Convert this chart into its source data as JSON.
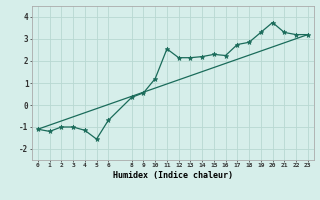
{
  "xlabel": "Humidex (Indice chaleur)",
  "background_color": "#d6eeea",
  "grid_color": "#b8d8d2",
  "line_color": "#1a6b5a",
  "x_ticks": [
    0,
    1,
    2,
    3,
    4,
    5,
    6,
    8,
    9,
    10,
    11,
    12,
    13,
    14,
    15,
    16,
    17,
    18,
    19,
    20,
    21,
    22,
    23
  ],
  "ylim": [
    -2.5,
    4.5
  ],
  "xlim": [
    -0.5,
    23.5
  ],
  "yticks": [
    -2,
    -1,
    0,
    1,
    2,
    3,
    4
  ],
  "series1_x": [
    0,
    1,
    2,
    3,
    4,
    5,
    6,
    8,
    9,
    10,
    11,
    12,
    13,
    14,
    15,
    16,
    17,
    18,
    19,
    20,
    21,
    22,
    23
  ],
  "series1_y": [
    -1.1,
    -1.2,
    -1.0,
    -1.0,
    -1.15,
    -1.55,
    -0.7,
    0.35,
    0.55,
    1.2,
    2.55,
    2.15,
    2.15,
    2.2,
    2.3,
    2.25,
    2.75,
    2.85,
    3.3,
    3.75,
    3.3,
    3.2,
    3.2
  ],
  "series2_x": [
    0,
    23
  ],
  "series2_y": [
    -1.1,
    3.2
  ],
  "markersize": 3.5
}
